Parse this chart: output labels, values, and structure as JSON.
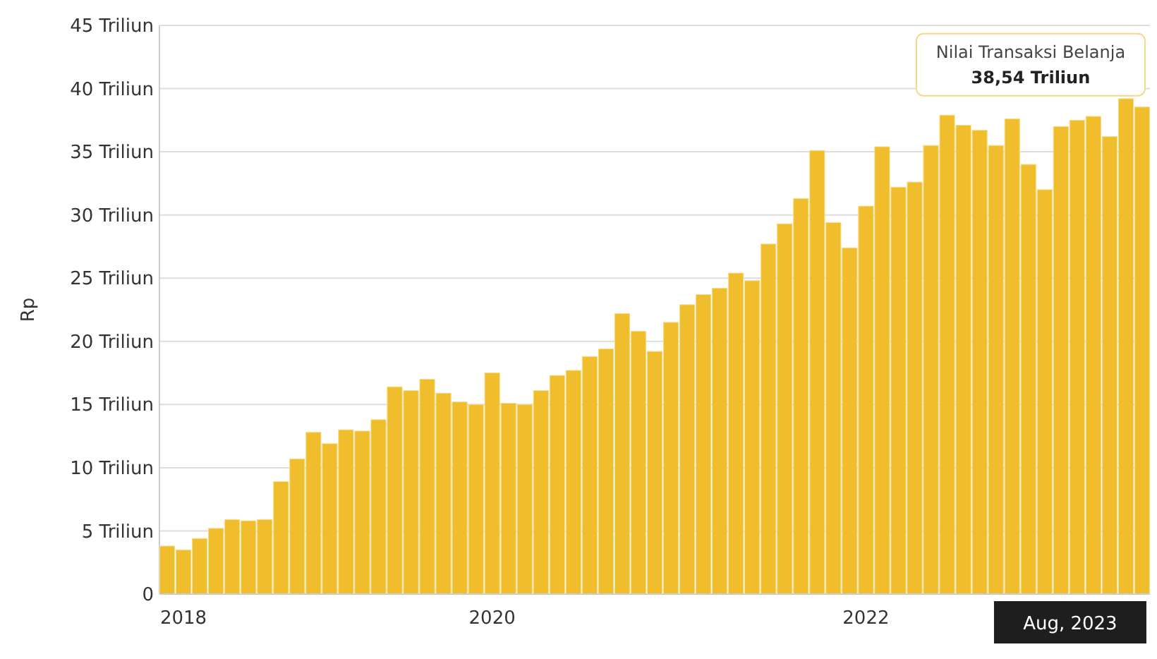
{
  "chart_data": {
    "type": "bar",
    "ylabel": "Rp",
    "color": "#f0be2c",
    "grid": "y",
    "categories": [
      null,
      "2018",
      null,
      null,
      null,
      null,
      null,
      null,
      null,
      null,
      null,
      null,
      null,
      null,
      null,
      null,
      null,
      null,
      null,
      null,
      "2020",
      null,
      null,
      null,
      null,
      null,
      null,
      null,
      null,
      null,
      null,
      null,
      null,
      null,
      null,
      null,
      null,
      null,
      null,
      null,
      null,
      null,
      null,
      "2022",
      null,
      null,
      null,
      null,
      null,
      null,
      null,
      null,
      null,
      null,
      null,
      null,
      null,
      null,
      null,
      null,
      null
    ],
    "values": [
      3.8,
      3.5,
      4.4,
      5.2,
      5.9,
      5.8,
      5.9,
      8.9,
      10.7,
      12.8,
      11.9,
      13,
      12.9,
      13.8,
      16.4,
      16.1,
      17,
      15.9,
      15.2,
      15,
      17.5,
      15.1,
      15,
      16.1,
      17.3,
      17.7,
      18.8,
      19.4,
      22.2,
      20.8,
      19.2,
      21.5,
      22.9,
      23.7,
      24.2,
      25.4,
      24.8,
      27.7,
      29.3,
      31.3,
      35.1,
      29.4,
      27.4,
      30.7,
      35.4,
      32.2,
      32.6,
      35.5,
      37.9,
      37.1,
      36.7,
      35.5,
      37.6,
      34,
      32,
      37,
      37.5,
      37.8,
      36.2,
      39.2,
      38.54
    ],
    "ylim": [
      0,
      45
    ],
    "yticks": [
      {
        "value": 0,
        "label": "0"
      },
      {
        "value": 5,
        "label": "5 Triliun"
      },
      {
        "value": 10,
        "label": "10 Triliun"
      },
      {
        "value": 15,
        "label": "15 Triliun"
      },
      {
        "value": 20,
        "label": "20 Triliun"
      },
      {
        "value": 25,
        "label": "25 Triliun"
      },
      {
        "value": 30,
        "label": "30 Triliun"
      },
      {
        "value": 35,
        "label": "35 Triliun"
      },
      {
        "value": 40,
        "label": "40 Triliun"
      },
      {
        "value": 45,
        "label": "45 Triliun"
      }
    ],
    "annotations": [
      "Nilai Transaksi Belanja",
      "38,54 Triliun",
      "Aug, 2023"
    ]
  }
}
